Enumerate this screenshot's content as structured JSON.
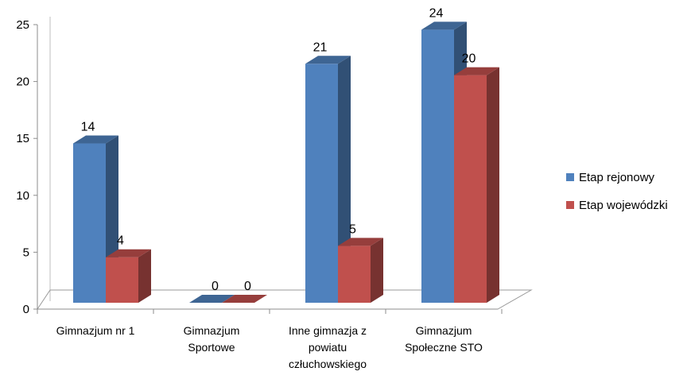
{
  "chart_data": {
    "type": "bar",
    "categories": [
      "Gimnazjum nr 1",
      "Gimnazjum Sportowe",
      "Inne gimnazja z powiatu człuchowskiego",
      "Gimnazjum Społeczne STO"
    ],
    "category_lines": [
      [
        "Gimnazjum nr 1"
      ],
      [
        "Gimnazjum",
        "Sportowe"
      ],
      [
        "Inne gimnazja z",
        "powiatu",
        "człuchowskiego"
      ],
      [
        "Gimnazjum",
        "Społeczne STO"
      ]
    ],
    "series": [
      {
        "name": "Etap rejonowy",
        "values": [
          14,
          0,
          21,
          24
        ],
        "color": "#4F81BD"
      },
      {
        "name": "Etap wojewódzki",
        "values": [
          4,
          0,
          5,
          20
        ],
        "color": "#C0504D"
      }
    ],
    "ylim": [
      0,
      25
    ],
    "yticks": [
      0,
      5,
      10,
      15,
      20,
      25
    ],
    "legend_position": "right",
    "grid": false,
    "title": "",
    "xlabel": "",
    "ylabel": ""
  }
}
